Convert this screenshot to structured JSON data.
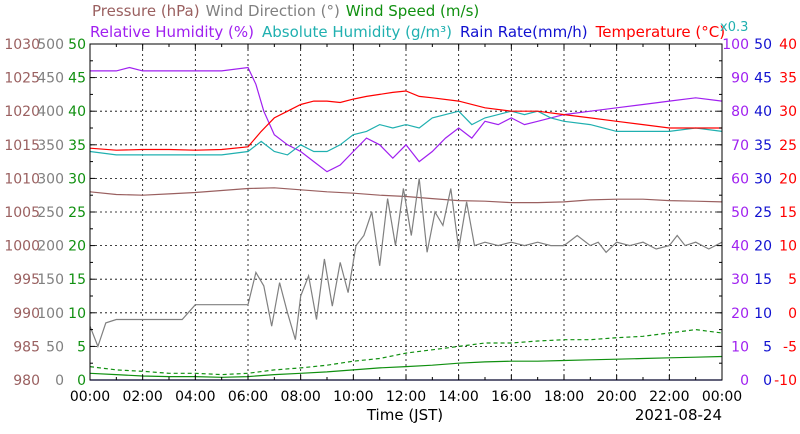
{
  "chart_data": {
    "type": "line",
    "title_parts": [
      {
        "text": "Pressure (hPa)",
        "color": "#9a6060"
      },
      {
        "text": "Wind Direction (°)",
        "color": "#808080"
      },
      {
        "text": "Wind Speed (m/s)",
        "color": "#109010"
      }
    ],
    "title_parts_row2": [
      {
        "text": "Relative Humidity (%)",
        "color": "#a020f0"
      },
      {
        "text": "Absolute Humidity (g/m³)",
        "color": "#20b0b0"
      },
      {
        "text": "Rain Rate(mm/h)",
        "color": "#1010d0"
      },
      {
        "text": "Temperature (°C)",
        "color": "#ff0000"
      }
    ],
    "scale_note": "x0.3",
    "xlabel": "Time (JST)",
    "date": "2021-08-24",
    "x_ticks": [
      "00:00",
      "02:00",
      "04:00",
      "06:00",
      "08:00",
      "10:00",
      "12:00",
      "14:00",
      "16:00",
      "18:00",
      "20:00",
      "22:00",
      "00:00"
    ],
    "xlim_hours": [
      0,
      24
    ],
    "left_axes": [
      {
        "name": "Pressure (hPa)",
        "color": "#9a6060",
        "ticks": [
          980,
          985,
          990,
          995,
          1000,
          1005,
          1010,
          1015,
          1020,
          1025,
          1030
        ],
        "ylim": [
          980,
          1030
        ]
      },
      {
        "name": "Wind Direction (°)",
        "color": "#808080",
        "ticks": [
          0,
          50,
          100,
          150,
          200,
          250,
          300,
          350,
          400,
          450,
          500
        ],
        "ylim": [
          0,
          500
        ]
      },
      {
        "name": "Wind Speed (m/s)",
        "color": "#109010",
        "ticks": [
          0,
          5,
          10,
          15,
          20,
          25,
          30,
          35,
          40,
          45,
          50
        ],
        "ylim": [
          0,
          50
        ]
      }
    ],
    "right_axes": [
      {
        "name": "Relative Humidity (%)",
        "color": "#a020f0",
        "ticks": [
          0,
          10,
          20,
          30,
          40,
          50,
          60,
          70,
          80,
          90,
          100
        ],
        "ylim": [
          0,
          100
        ]
      },
      {
        "name": "Rain Rate(mm/h)",
        "color": "#1010d0",
        "ticks": [
          0,
          5,
          10,
          15,
          20,
          25,
          30,
          35,
          40,
          45,
          50
        ],
        "ylim": [
          0,
          50
        ]
      },
      {
        "name": "Temperature (°C)",
        "color": "#ff0000",
        "ticks": [
          -10,
          -5,
          0,
          5,
          10,
          15,
          20,
          25,
          30,
          35,
          40
        ],
        "ylim": [
          -10,
          40
        ]
      }
    ],
    "grid": true,
    "series": [
      {
        "name": "Pressure (hPa)",
        "axis": "pressure",
        "color": "#9a6060",
        "x": [
          0,
          1,
          2,
          3,
          4,
          5,
          6,
          7,
          8,
          9,
          10,
          11,
          12,
          13,
          14,
          15,
          16,
          17,
          18,
          19,
          20,
          21,
          22,
          23,
          24
        ],
        "y": [
          1008.0,
          1007.6,
          1007.5,
          1007.7,
          1007.9,
          1008.2,
          1008.5,
          1008.6,
          1008.3,
          1008.0,
          1007.8,
          1007.5,
          1007.3,
          1007.0,
          1006.7,
          1006.6,
          1006.4,
          1006.4,
          1006.5,
          1006.8,
          1006.9,
          1006.9,
          1006.7,
          1006.6,
          1006.5
        ]
      },
      {
        "name": "Wind Direction (°)",
        "axis": "direction",
        "color": "#808080",
        "x": [
          0,
          0.3,
          0.6,
          1,
          1.5,
          2,
          2.5,
          3,
          3.5,
          4,
          4.5,
          5,
          5.5,
          6,
          6.3,
          6.6,
          6.9,
          7.2,
          7.5,
          7.8,
          8.0,
          8.3,
          8.6,
          8.9,
          9.2,
          9.5,
          9.8,
          10.1,
          10.4,
          10.7,
          11.0,
          11.3,
          11.6,
          11.9,
          12.2,
          12.5,
          12.8,
          13.1,
          13.4,
          13.7,
          14.0,
          14.3,
          14.6,
          15.0,
          15.5,
          16,
          16.5,
          17,
          17.5,
          18,
          18.5,
          19,
          19.3,
          19.6,
          20,
          20.5,
          21,
          21.5,
          22,
          22.3,
          22.6,
          23,
          23.5,
          24
        ],
        "y": [
          80,
          50,
          85,
          90,
          90,
          90,
          90,
          90,
          90,
          112,
          112,
          112,
          112,
          112,
          160,
          140,
          80,
          145,
          100,
          60,
          125,
          155,
          90,
          180,
          110,
          175,
          130,
          200,
          215,
          250,
          170,
          270,
          200,
          285,
          215,
          300,
          190,
          250,
          230,
          285,
          195,
          265,
          200,
          205,
          200,
          205,
          200,
          205,
          200,
          200,
          215,
          200,
          205,
          190,
          205,
          200,
          205,
          195,
          200,
          215,
          200,
          205,
          195,
          205
        ]
      },
      {
        "name": "Wind Speed (m/s)",
        "axis": "speed",
        "color": "#109010",
        "x": [
          0,
          1,
          2,
          3,
          4,
          5,
          6,
          7,
          8,
          9,
          10,
          11,
          12,
          13,
          14,
          15,
          16,
          17,
          18,
          19,
          20,
          21,
          22,
          23,
          24
        ],
        "y": [
          1.0,
          0.8,
          0.6,
          0.5,
          0.5,
          0.4,
          0.5,
          0.8,
          1.0,
          1.2,
          1.5,
          1.8,
          2.0,
          2.2,
          2.5,
          2.7,
          2.8,
          2.8,
          2.9,
          3.0,
          3.1,
          3.2,
          3.3,
          3.4,
          3.5
        ]
      },
      {
        "name": "Wind Speed Gust (m/s)",
        "axis": "speed",
        "color": "#109010",
        "dashed": true,
        "x": [
          0,
          1,
          2,
          3,
          4,
          5,
          6,
          7,
          8,
          9,
          10,
          11,
          12,
          13,
          14,
          15,
          16,
          17,
          18,
          19,
          20,
          21,
          22,
          23,
          24
        ],
        "y": [
          2.0,
          1.5,
          1.3,
          1.0,
          1.0,
          0.8,
          1.0,
          1.5,
          1.8,
          2.2,
          2.8,
          3.2,
          4.0,
          4.5,
          5.0,
          5.5,
          5.5,
          5.8,
          6.0,
          6.0,
          6.3,
          6.5,
          7.0,
          7.5,
          7.0
        ]
      },
      {
        "name": "Relative Humidity (%)",
        "axis": "rh",
        "color": "#a020f0",
        "x": [
          0,
          1,
          1.5,
          2,
          2.5,
          3,
          4,
          5,
          6,
          6.3,
          6.6,
          7,
          7.5,
          8,
          8.5,
          9,
          9.5,
          10,
          10.5,
          11,
          11.5,
          12,
          12.5,
          13,
          13.5,
          14,
          14.5,
          15,
          15.5,
          16,
          16.5,
          17,
          17.5,
          18,
          19,
          20,
          21,
          22,
          23,
          24
        ],
        "y": [
          92,
          92,
          93,
          92,
          92,
          92,
          92,
          92,
          93,
          88,
          80,
          73,
          70,
          68,
          65,
          62,
          64,
          68,
          72,
          70,
          66,
          70,
          65,
          68,
          72,
          75,
          72,
          77,
          76,
          78,
          76,
          77,
          78,
          79,
          80,
          81,
          82,
          83,
          84,
          83
        ]
      },
      {
        "name": "Absolute Humidity (g/m³)",
        "axis": "temp",
        "color": "#20b0b0",
        "x": [
          0,
          1,
          2,
          3,
          4,
          5,
          6,
          6.5,
          7,
          7.5,
          8,
          8.5,
          9,
          9.5,
          10,
          10.5,
          11,
          11.5,
          12,
          12.5,
          13,
          13.5,
          14,
          14.5,
          15,
          15.5,
          16,
          16.5,
          17,
          17.5,
          18,
          19,
          20,
          21,
          22,
          23,
          24
        ],
        "y": [
          24,
          23.5,
          23.5,
          23.5,
          23.5,
          23.5,
          24,
          25.5,
          24,
          23.5,
          25,
          24,
          24,
          25,
          26.5,
          27,
          28,
          27.5,
          28,
          27.5,
          29,
          29.5,
          30,
          28,
          29,
          29.5,
          30,
          29.5,
          30,
          29,
          28.5,
          28,
          27,
          27,
          27,
          27.5,
          27
        ]
      },
      {
        "name": "Rain Rate(mm/h)",
        "axis": "rain",
        "color": "#1010d0",
        "x": [
          0,
          24
        ],
        "y": [
          0,
          0
        ]
      },
      {
        "name": "Temperature (°C)",
        "axis": "temp",
        "color": "#ff0000",
        "x": [
          0,
          1,
          2,
          3,
          4,
          5,
          6,
          6.5,
          7,
          7.5,
          8,
          8.5,
          9,
          9.5,
          10,
          10.5,
          11,
          11.5,
          12,
          12.5,
          13,
          14,
          15,
          16,
          17,
          18,
          19,
          20,
          21,
          22,
          23,
          24
        ],
        "y": [
          24.5,
          24.2,
          24.3,
          24.3,
          24.2,
          24.3,
          24.7,
          27,
          29,
          30,
          31,
          31.5,
          31.5,
          31.3,
          31.8,
          32.2,
          32.5,
          32.8,
          33,
          32.2,
          32,
          31.5,
          30.5,
          30,
          30,
          29.5,
          29,
          28.5,
          28,
          27.5,
          27.5,
          27.5
        ]
      }
    ]
  }
}
